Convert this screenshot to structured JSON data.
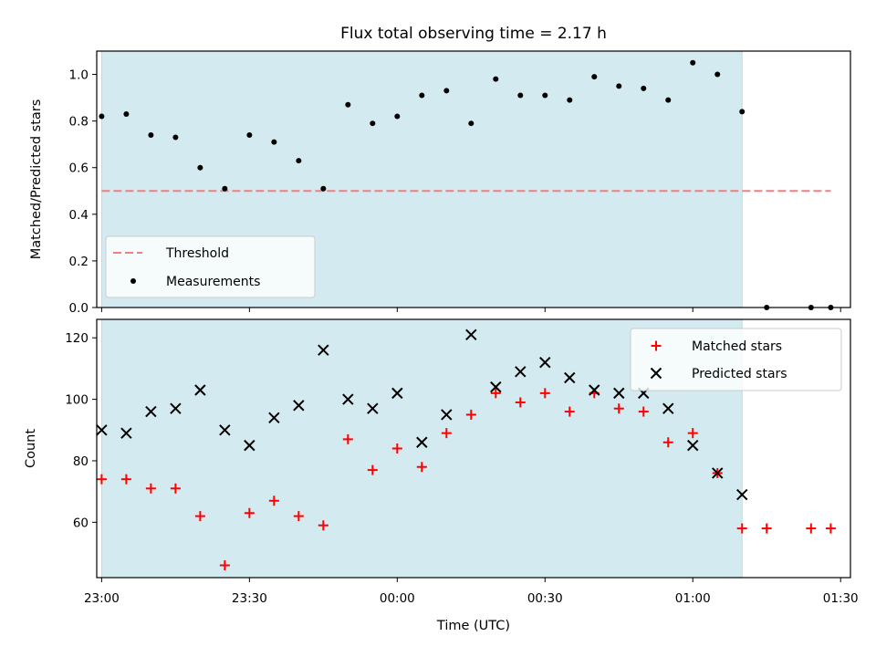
{
  "figure_title": "Flux total observing time = 2.17 h",
  "chart_data": [
    {
      "type": "scatter",
      "title": "Flux total observing time = 2.17 h",
      "xlabel": "",
      "ylabel": "Matched/Predicted stars",
      "xlim": [
        "22:59",
        "01:32"
      ],
      "ylim": [
        0,
        1.1
      ],
      "x_ticks": [
        "23:00",
        "23:30",
        "00:00",
        "00:30",
        "01:00",
        "01:30"
      ],
      "y_ticks": [
        "0.0",
        "0.2",
        "0.4",
        "0.6",
        "0.8",
        "1.0"
      ],
      "shaded_region": {
        "start": "23:00",
        "end": "01:10",
        "color": "#d3eaf0"
      },
      "legend": {
        "position": "lower left",
        "entries": [
          "Threshold",
          "Measurements"
        ]
      },
      "series": [
        {
          "name": "Threshold",
          "style": "dashed-line",
          "color": "#f08080",
          "x": [
            "23:00",
            "01:28"
          ],
          "y": [
            0.5,
            0.5
          ]
        },
        {
          "name": "Measurements",
          "style": "dot",
          "color": "#000000",
          "x": [
            "23:00",
            "23:05",
            "23:10",
            "23:15",
            "23:20",
            "23:25",
            "23:30",
            "23:35",
            "23:40",
            "23:45",
            "23:50",
            "23:55",
            "00:00",
            "00:05",
            "00:10",
            "00:15",
            "00:20",
            "00:25",
            "00:30",
            "00:35",
            "00:40",
            "00:45",
            "00:50",
            "00:55",
            "01:00",
            "01:05",
            "01:10",
            "01:15",
            "01:24",
            "01:28"
          ],
          "y": [
            0.82,
            0.83,
            0.74,
            0.73,
            0.6,
            0.51,
            0.74,
            0.71,
            0.63,
            0.51,
            0.87,
            0.79,
            0.82,
            0.91,
            0.93,
            0.79,
            0.98,
            0.91,
            0.91,
            0.89,
            0.99,
            0.95,
            0.94,
            0.89,
            1.05,
            1.0,
            0.84,
            0.0,
            0.0,
            0.0
          ]
        }
      ]
    },
    {
      "type": "scatter",
      "xlabel": "Time (UTC)",
      "ylabel": "Count",
      "xlim": [
        "22:59",
        "01:32"
      ],
      "ylim": [
        42,
        126
      ],
      "x_ticks": [
        "23:00",
        "23:30",
        "00:00",
        "00:30",
        "01:00",
        "01:30"
      ],
      "y_ticks": [
        "60",
        "80",
        "100",
        "120"
      ],
      "shaded_region": {
        "start": "23:00",
        "end": "01:10",
        "color": "#d3eaf0"
      },
      "legend": {
        "position": "upper right",
        "entries": [
          "Matched stars",
          "Predicted stars"
        ]
      },
      "series": [
        {
          "name": "Matched stars",
          "marker": "plus",
          "color": "#ff0000",
          "x": [
            "23:00",
            "23:05",
            "23:10",
            "23:15",
            "23:20",
            "23:25",
            "23:30",
            "23:35",
            "23:40",
            "23:45",
            "23:50",
            "23:55",
            "00:00",
            "00:05",
            "00:10",
            "00:15",
            "00:20",
            "00:25",
            "00:30",
            "00:35",
            "00:40",
            "00:45",
            "00:50",
            "00:55",
            "01:00",
            "01:05",
            "01:10",
            "01:15",
            "01:24",
            "01:28"
          ],
          "y": [
            74,
            74,
            71,
            71,
            62,
            46,
            63,
            67,
            62,
            59,
            87,
            77,
            84,
            78,
            89,
            95,
            102,
            99,
            102,
            96,
            102,
            97,
            96,
            86,
            89,
            76,
            58,
            58,
            58,
            58
          ]
        },
        {
          "name": "Predicted stars",
          "marker": "x",
          "color": "#000000",
          "x": [
            "23:00",
            "23:05",
            "23:10",
            "23:15",
            "23:20",
            "23:25",
            "23:30",
            "23:35",
            "23:40",
            "23:45",
            "23:50",
            "23:55",
            "00:00",
            "00:05",
            "00:10",
            "00:15",
            "00:20",
            "00:25",
            "00:30",
            "00:35",
            "00:40",
            "00:45",
            "00:50",
            "00:55",
            "01:00",
            "01:05",
            "01:10"
          ],
          "y": [
            90,
            89,
            96,
            97,
            103,
            90,
            85,
            94,
            98,
            116,
            100,
            97,
            102,
            86,
            95,
            121,
            104,
            109,
            112,
            107,
            103,
            102,
            102,
            97,
            85,
            76,
            69
          ]
        }
      ]
    }
  ]
}
